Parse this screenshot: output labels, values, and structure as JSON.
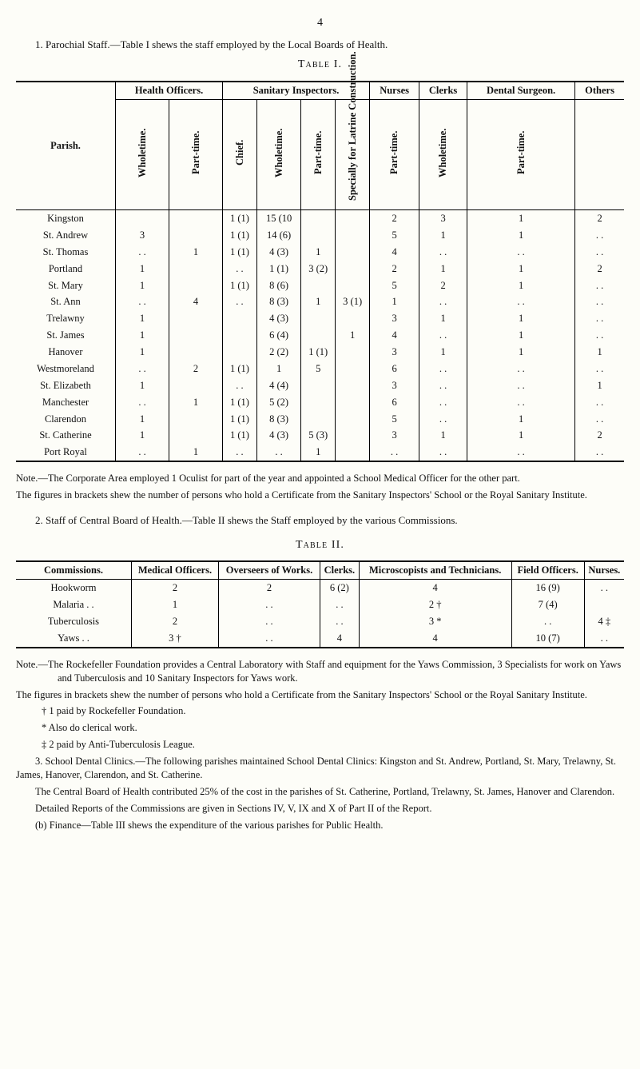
{
  "page_number": "4",
  "section1": {
    "lead": "1. Parochial   Staff.—Table I shews the staff employed by the Local Boards of Health.",
    "caption": "Table I.",
    "group_headers": [
      "Parish.",
      "Health Officers.",
      "Sanitary Inspectors.",
      "Nurses",
      "Clerks",
      "Dental Surgeon.",
      "Others"
    ],
    "sub_headers": {
      "health_off_whole": "Wholetime.",
      "health_off_part": "Part-time.",
      "san_chief": "Chief.",
      "san_whole": "Wholetime.",
      "san_part": "Part-time.",
      "san_spec": "Specially for Latrine Construction.",
      "nurses": "Part-time.",
      "clerks": "Wholetime.",
      "dental": "Part-time."
    },
    "rows": [
      {
        "parish": "Kingston",
        "c0": "",
        "c1": "",
        "c2": "1 (1)",
        "c3": "15 (10",
        "c4": "",
        "c5": "",
        "c6": "2",
        "c7": "3",
        "c8": "1",
        "c9": "2"
      },
      {
        "parish": "St. Andrew",
        "c0": "3",
        "c1": "",
        "c2": "1 (1)",
        "c3": "14 (6)",
        "c4": "",
        "c5": "",
        "c6": "5",
        "c7": "1",
        "c8": "1",
        "c9": ". ."
      },
      {
        "parish": "St. Thomas",
        "c0": ". .",
        "c1": "1",
        "c2": "1 (1)",
        "c3": "4 (3)",
        "c4": "1",
        "c5": "",
        "c6": "4",
        "c7": ". .",
        "c8": ". .",
        "c9": ". ."
      },
      {
        "parish": "Portland",
        "c0": "1",
        "c1": "",
        "c2": ". .",
        "c3": "1 (1)",
        "c4": "3 (2)",
        "c5": "",
        "c6": "2",
        "c7": "1",
        "c8": "1",
        "c9": "2"
      },
      {
        "parish": "St. Mary",
        "c0": "1",
        "c1": "",
        "c2": "1 (1)",
        "c3": "8 (6)",
        "c4": "",
        "c5": "",
        "c6": "5",
        "c7": "2",
        "c8": "1",
        "c9": ". ."
      },
      {
        "parish": "St. Ann",
        "c0": ". .",
        "c1": "4",
        "c2": ". .",
        "c3": "8 (3)",
        "c4": "1",
        "c5": "3 (1)",
        "c6": "1",
        "c7": ". .",
        "c8": ". .",
        "c9": ". ."
      },
      {
        "parish": "Trelawny",
        "c0": "1",
        "c1": "",
        "c2": "",
        "c3": "4 (3)",
        "c4": "",
        "c5": "",
        "c6": "3",
        "c7": "1",
        "c8": "1",
        "c9": ". ."
      },
      {
        "parish": "St. James",
        "c0": "1",
        "c1": "",
        "c2": "",
        "c3": "6 (4)",
        "c4": "",
        "c5": "1",
        "c6": "4",
        "c7": ". .",
        "c8": "1",
        "c9": ". ."
      },
      {
        "parish": "Hanover",
        "c0": "1",
        "c1": "",
        "c2": "",
        "c3": "2 (2)",
        "c4": "1 (1)",
        "c5": "",
        "c6": "3",
        "c7": "1",
        "c8": "1",
        "c9": "1"
      },
      {
        "parish": "Westmoreland",
        "c0": ". .",
        "c1": "2",
        "c2": "1 (1)",
        "c3": "1",
        "c4": "5",
        "c5": "",
        "c6": "6",
        "c7": ". .",
        "c8": ". .",
        "c9": ". ."
      },
      {
        "parish": "St. Elizabeth",
        "c0": "1",
        "c1": "",
        "c2": ". .",
        "c3": "4 (4)",
        "c4": "",
        "c5": "",
        "c6": "3",
        "c7": ". .",
        "c8": ". .",
        "c9": "1"
      },
      {
        "parish": "Manchester",
        "c0": ". .",
        "c1": "1",
        "c2": "1 (1)",
        "c3": "5 (2)",
        "c4": "",
        "c5": "",
        "c6": "6",
        "c7": ". .",
        "c8": ". .",
        "c9": ". ."
      },
      {
        "parish": "Clarendon",
        "c0": "1",
        "c1": "",
        "c2": "1 (1)",
        "c3": "8 (3)",
        "c4": "",
        "c5": "",
        "c6": "5",
        "c7": ". .",
        "c8": "1",
        "c9": ". ."
      },
      {
        "parish": "St. Catherine",
        "c0": "1",
        "c1": "",
        "c2": "1 (1)",
        "c3": "4 (3)",
        "c4": "5 (3)",
        "c5": "",
        "c6": "3",
        "c7": "1",
        "c8": "1",
        "c9": "2"
      },
      {
        "parish": "Port Royal",
        "c0": ". .",
        "c1": "1",
        "c2": ". .",
        "c3": ". .",
        "c4": "1",
        "c5": "",
        "c6": ". .",
        "c7": ". .",
        "c8": ". .",
        "c9": ". ."
      }
    ],
    "notes": {
      "l1": "Note.—The Corporate Area employed 1 Oculist for part of the year and appointed a School Medical Officer for the other part.",
      "l2": "The figures in brackets shew the number of persons who hold a Certificate from the Sanitary Inspectors' School or the Royal Sanitary Institute."
    }
  },
  "section2": {
    "lead": "2. Staff of Central Board of Health.—Table II shews the Staff employed by the various Commissions.",
    "caption": "Table II.",
    "headers": [
      "Commissions.",
      "Medical Officers.",
      "Overseers of Works.",
      "Clerks.",
      "Microscopists and Technicians.",
      "Field Officers.",
      "Nurses."
    ],
    "rows": [
      {
        "name": "Hookworm",
        "c0": "2",
        "c1": "2",
        "c2": "6 (2)",
        "c3": "4",
        "c4": "16 (9)",
        "c5": ". ."
      },
      {
        "name": "Malaria    . .",
        "c0": "1",
        "c1": ". .",
        "c2": ". .",
        "c3": "2 †",
        "c4": "7 (4)",
        "c5": ""
      },
      {
        "name": "Tuberculosis",
        "c0": "2",
        "c1": ". .",
        "c2": ". .",
        "c3": "3 *",
        "c4": ". .",
        "c5": "4 ‡"
      },
      {
        "name": "Yaws     . .",
        "c0": "3 †",
        "c1": ". .",
        "c2": "4",
        "c3": "4",
        "c4": "10 (7)",
        "c5": ". ."
      }
    ],
    "notes": {
      "l1": "Note.—The Rockefeller Foundation provides a Central Laboratory with Staff and equipment for the Yaws Commission, 3 Specialists for work on Yaws and Tuberculosis and 10 Sanitary Inspectors for Yaws work.",
      "l2": "The figures in brackets shew the number of persons who hold a Certificate from the Sanitary Inspectors' School or the Royal Sanitary Institute.",
      "l3": "† 1 paid by Rockefeller Foundation.",
      "l4": "* Also do clerical work.",
      "l5": "‡ 2 paid by Anti-Tuberculosis League.",
      "l6": "3. School Dental Clinics.—The following parishes maintained School Dental Clinics: Kingston and St. Andrew, Portland, St. Mary, Trelawny, St. James, Hanover, Clarendon, and St. Catherine.",
      "l7": "The Central Board of Health contributed 25% of the cost in the parishes of St. Catherine, Portland, Trelawny, St. James, Hanover and Clarendon.",
      "l8": "Detailed Reports of the Commissions are given in Sections IV, V, IX and X of Part II of the Report.",
      "l9": "(b) Finance—Table III shews the expenditure of the various parishes for Public Health."
    }
  },
  "style": {
    "background_color": "#fdfdf8",
    "text_color": "#111111",
    "font_family": "Times New Roman",
    "body_font_size_pt": 10,
    "table_font_size_pt": 9.5,
    "heavy_rule_color": "#000000",
    "thin_rule_color": "#000000"
  }
}
